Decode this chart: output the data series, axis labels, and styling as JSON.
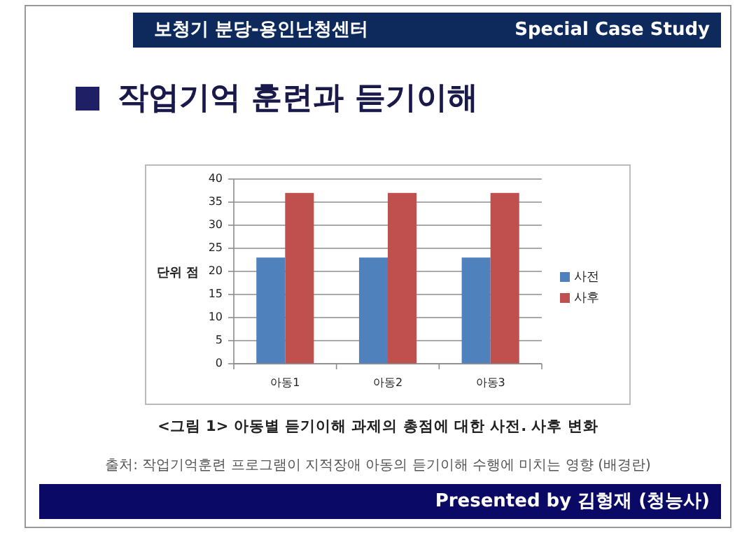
{
  "chart_data": {
    "type": "bar",
    "title": "작업기억 훈련과 듣기이해",
    "ylabel": "단위 점",
    "categories": [
      "아동1",
      "아동2",
      "아동3"
    ],
    "series": [
      {
        "name": "사전",
        "color": "#4f81bd",
        "values": [
          23,
          23,
          23
        ]
      },
      {
        "name": "사후",
        "color": "#c0504d",
        "values": [
          37,
          37,
          37
        ]
      }
    ],
    "ylim": [
      0,
      40
    ],
    "yticks": [
      0,
      5,
      10,
      15,
      20,
      25,
      30,
      35,
      40
    ],
    "grid": "y",
    "legend": "right",
    "annotations": [
      "보청기 분당-용인난청센터",
      "Special Case Study",
      "<그림 1> 아동별 듣기이해 과제의 총점에 대한 사전. 사후 변화",
      "출처: 작업기억훈련 프로그램이 지적장애 아동의 듣기이해 수행에 미치는 영향 (배경란)",
      "Presented by 김형재 (청능사)"
    ]
  }
}
